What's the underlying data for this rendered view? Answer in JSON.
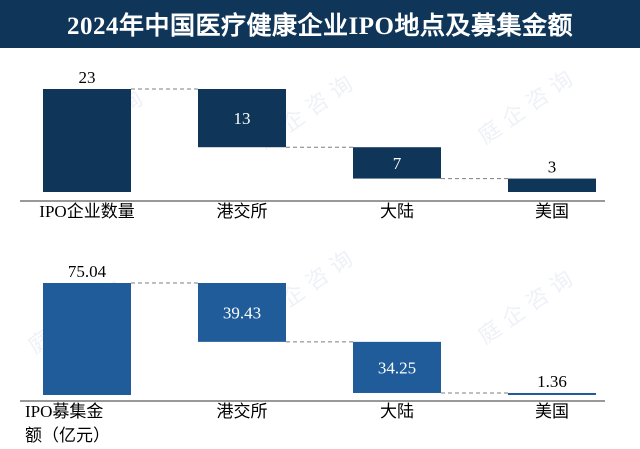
{
  "title": "2024年中国医疗健康企业IPO地点及募集金额",
  "watermark": "庭 企 咨 询",
  "colors": {
    "title_bg": "#0f3558",
    "dark_bar": "#0f3558",
    "light_bar": "#1f5c99",
    "connector": "#7f7f7f"
  },
  "chart_data": [
    {
      "type": "bar",
      "subtype": "waterfall",
      "categories": [
        "IPO企业数量",
        "港交所",
        "大陆",
        "美国"
      ],
      "values": [
        23,
        13,
        7,
        3
      ],
      "labels": [
        "23",
        "13",
        "7",
        "3"
      ],
      "title": "",
      "xlabel": "",
      "ylabel": "",
      "grid": false
    },
    {
      "type": "bar",
      "subtype": "waterfall",
      "categories": [
        "IPO募集金额（亿元）",
        "港交所",
        "大陆",
        "美国"
      ],
      "values": [
        75.04,
        39.43,
        34.25,
        1.36
      ],
      "labels": [
        "75.04",
        "39.43",
        "34.25",
        "1.36"
      ],
      "title": "",
      "xlabel": "",
      "ylabel": "",
      "grid": false
    }
  ]
}
